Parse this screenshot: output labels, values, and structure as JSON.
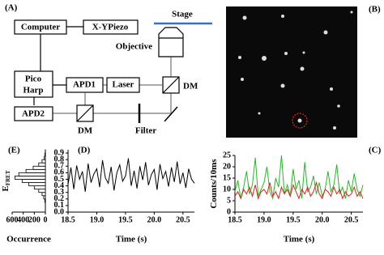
{
  "panels": {
    "A": "(A)",
    "B": "(B)"
  },
  "diagram": {
    "computer": "Computer",
    "piezo": "X-YPiezo",
    "stage": "Stage",
    "objective": "Objective",
    "pico": "Pico",
    "harp": "Harp",
    "apd1": "APD1",
    "laser": "Laser",
    "dm1": "DM",
    "apd2": "APD2",
    "dm2": "DM",
    "filter": "Filter"
  },
  "chart_data": [
    {
      "type": "histogram",
      "panel_label": "(E)",
      "xlabel": "Occurrence",
      "ylabel": "E",
      "ylabel_sub": "FRET",
      "bins": [
        0.15,
        0.2,
        0.25,
        0.3,
        0.35,
        0.4,
        0.45,
        0.5,
        0.55,
        0.6,
        0.65,
        0.7,
        0.75,
        0.8,
        0.85,
        0.9,
        0.95
      ],
      "values": [
        10,
        30,
        60,
        120,
        200,
        300,
        420,
        550,
        480,
        350,
        220,
        120,
        60,
        20,
        8,
        2
      ],
      "color": "#ffffff",
      "xlim": [
        600,
        0
      ],
      "xticks": [
        600,
        400,
        200,
        0
      ],
      "ylim": [
        0,
        0.95
      ]
    },
    {
      "type": "line",
      "panel_label": "(D)",
      "xlabel": "Time (s)",
      "x": [
        18.5,
        18.55,
        18.6,
        18.65,
        18.7,
        18.75,
        18.8,
        18.85,
        18.9,
        18.95,
        19,
        19.05,
        19.1,
        19.15,
        19.2,
        19.25,
        19.3,
        19.35,
        19.4,
        19.45,
        19.5,
        19.55,
        19.6,
        19.65,
        19.7,
        19.75,
        19.8,
        19.85,
        19.9,
        19.95,
        20,
        20.05,
        20.1,
        20.15,
        20.2,
        20.25,
        20.3,
        20.35,
        20.4,
        20.45,
        20.5,
        20.55,
        20.6,
        20.65,
        20.7
      ],
      "series": [
        {
          "color": "#000000",
          "values": [
            0.42,
            0.68,
            0.35,
            0.71,
            0.5,
            0.62,
            0.31,
            0.74,
            0.45,
            0.58,
            0.66,
            0.38,
            0.79,
            0.52,
            0.44,
            0.69,
            0.33,
            0.6,
            0.72,
            0.47,
            0.55,
            0.82,
            0.4,
            0.63,
            0.36,
            0.7,
            0.49,
            0.76,
            0.41,
            0.57,
            0.65,
            0.34,
            0.73,
            0.51,
            0.62,
            0.39,
            0.68,
            0.46,
            0.77,
            0.43,
            0.6,
            0.37,
            0.66,
            0.5,
            0.44
          ]
        }
      ],
      "xlim": [
        18.5,
        20.7
      ],
      "xticks": [
        {
          "value": 18.5,
          "label": "18.5"
        },
        {
          "value": 19,
          "label": "19.0"
        },
        {
          "value": 19.5,
          "label": "19.5"
        },
        {
          "value": 20,
          "label": "20.0"
        },
        {
          "value": 20.5,
          "label": "20.5"
        }
      ],
      "ylim": [
        0,
        0.95
      ],
      "yticks": [
        {
          "value": 0,
          "label": "0.0"
        },
        0.1,
        0.2,
        0.3,
        0.4,
        0.5,
        0.6,
        0.7,
        0.8,
        0.9
      ]
    },
    {
      "type": "line",
      "panel_label": "(C)",
      "xlabel": "Time (s)",
      "ylabel": "Counts/10ms",
      "x": [
        18.5,
        18.55,
        18.6,
        18.65,
        18.7,
        18.75,
        18.8,
        18.85,
        18.9,
        18.95,
        19,
        19.05,
        19.1,
        19.15,
        19.2,
        19.25,
        19.3,
        19.35,
        19.4,
        19.45,
        19.5,
        19.55,
        19.6,
        19.65,
        19.7,
        19.75,
        19.8,
        19.85,
        19.9,
        19.95,
        20,
        20.05,
        20.1,
        20.15,
        20.2,
        20.25,
        20.3,
        20.35,
        20.4,
        20.45,
        20.5,
        20.55,
        20.6,
        20.65,
        20.7
      ],
      "series": [
        {
          "color": "#22bb22",
          "values": [
            9,
            14,
            6,
            11,
            18,
            8,
            12,
            24,
            7,
            10,
            13,
            20,
            9,
            6,
            15,
            11,
            25,
            8,
            12,
            7,
            19,
            10,
            14,
            6,
            22,
            9,
            11,
            16,
            8,
            13,
            7,
            10,
            18,
            9,
            12,
            21,
            8,
            11,
            6,
            14,
            9,
            17,
            10,
            7,
            12
          ]
        },
        {
          "color": "#dd2222",
          "values": [
            7,
            9,
            6,
            10,
            8,
            11,
            7,
            12,
            6,
            9,
            10,
            8,
            13,
            7,
            9,
            6,
            11,
            8,
            10,
            7,
            12,
            9,
            6,
            10,
            8,
            11,
            7,
            9,
            13,
            8,
            6,
            10,
            9,
            7,
            11,
            8,
            10,
            6,
            9,
            7,
            8,
            11,
            7,
            9,
            6
          ]
        }
      ],
      "xlim": [
        18.5,
        20.7
      ],
      "xticks": [
        {
          "value": 18.5,
          "label": "18.5"
        },
        {
          "value": 19,
          "label": "19.0"
        },
        {
          "value": 19.5,
          "label": "19.5"
        },
        {
          "value": 20,
          "label": "20.0"
        },
        {
          "value": 20.5,
          "label": "20.5"
        }
      ],
      "ylim": [
        0,
        25
      ],
      "yticks": [
        0,
        5,
        10,
        15,
        20,
        25
      ]
    }
  ]
}
